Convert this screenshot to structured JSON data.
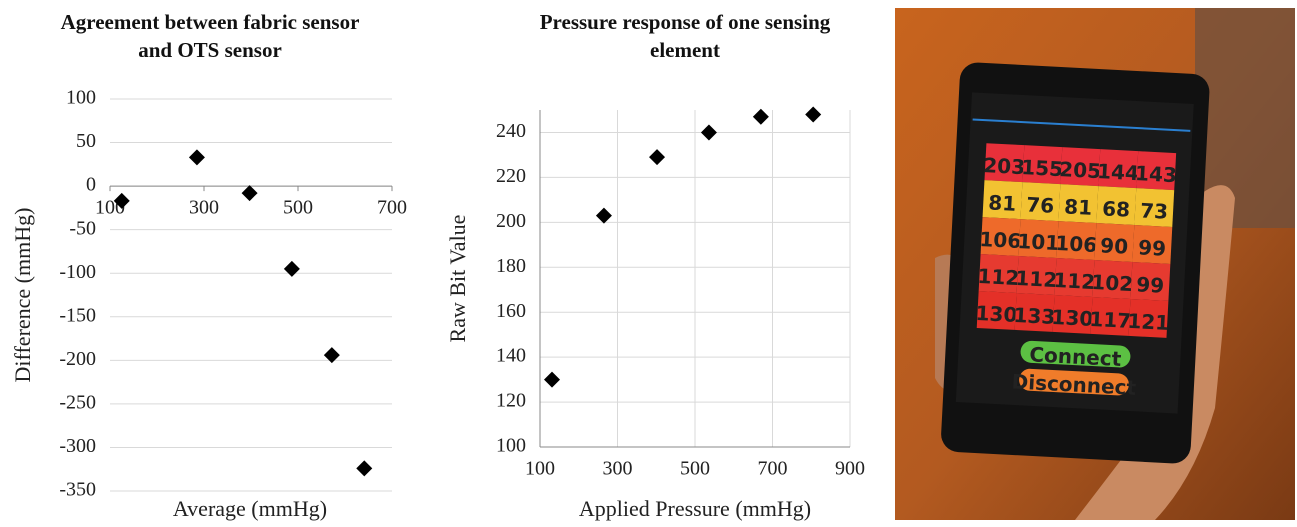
{
  "chart_data": [
    {
      "type": "scatter",
      "title": "Agreement between fabric sensor and OTS sensor",
      "x_label": "Average (mmHg)",
      "y_label": "Difference (mmHg)",
      "x": [
        125,
        285,
        397,
        487,
        572,
        641
      ],
      "values": [
        -17,
        33,
        -8,
        -95,
        -194,
        -324
      ],
      "xlim": [
        100,
        700
      ],
      "ylim": [
        -350,
        100
      ],
      "xticks": [
        100,
        300,
        500,
        700
      ],
      "yticks": [
        -350,
        -300,
        -250,
        -200,
        -150,
        -100,
        -50,
        0,
        50,
        100
      ],
      "grid": "y",
      "color": "#000000"
    },
    {
      "type": "scatter",
      "title": "Pressure response of one sensing element",
      "x_label": "Applied Pressure (mmHg)",
      "y_label": "Raw Bit Value",
      "x": [
        131,
        265,
        402,
        536,
        670,
        805
      ],
      "values": [
        130,
        203,
        229,
        240,
        247,
        248
      ],
      "xlim": [
        100,
        900
      ],
      "ylim": [
        100,
        250
      ],
      "xticks": [
        100,
        300,
        500,
        700,
        900
      ],
      "yticks": [
        100,
        120,
        140,
        160,
        180,
        200,
        220,
        240
      ],
      "grid": "both",
      "color": "#000000"
    }
  ],
  "photo": {
    "readings": [
      [
        "203",
        "155",
        "205",
        "144",
        "143"
      ],
      [
        "81",
        "76",
        "81",
        "68",
        "73"
      ],
      [
        "106",
        "101",
        "106",
        "90",
        "99"
      ],
      [
        "112",
        "112",
        "112",
        "102",
        "99"
      ],
      [
        "130",
        "133",
        "130",
        "117",
        "121"
      ]
    ],
    "buttons": [
      "Connect",
      "Disconnect"
    ]
  }
}
